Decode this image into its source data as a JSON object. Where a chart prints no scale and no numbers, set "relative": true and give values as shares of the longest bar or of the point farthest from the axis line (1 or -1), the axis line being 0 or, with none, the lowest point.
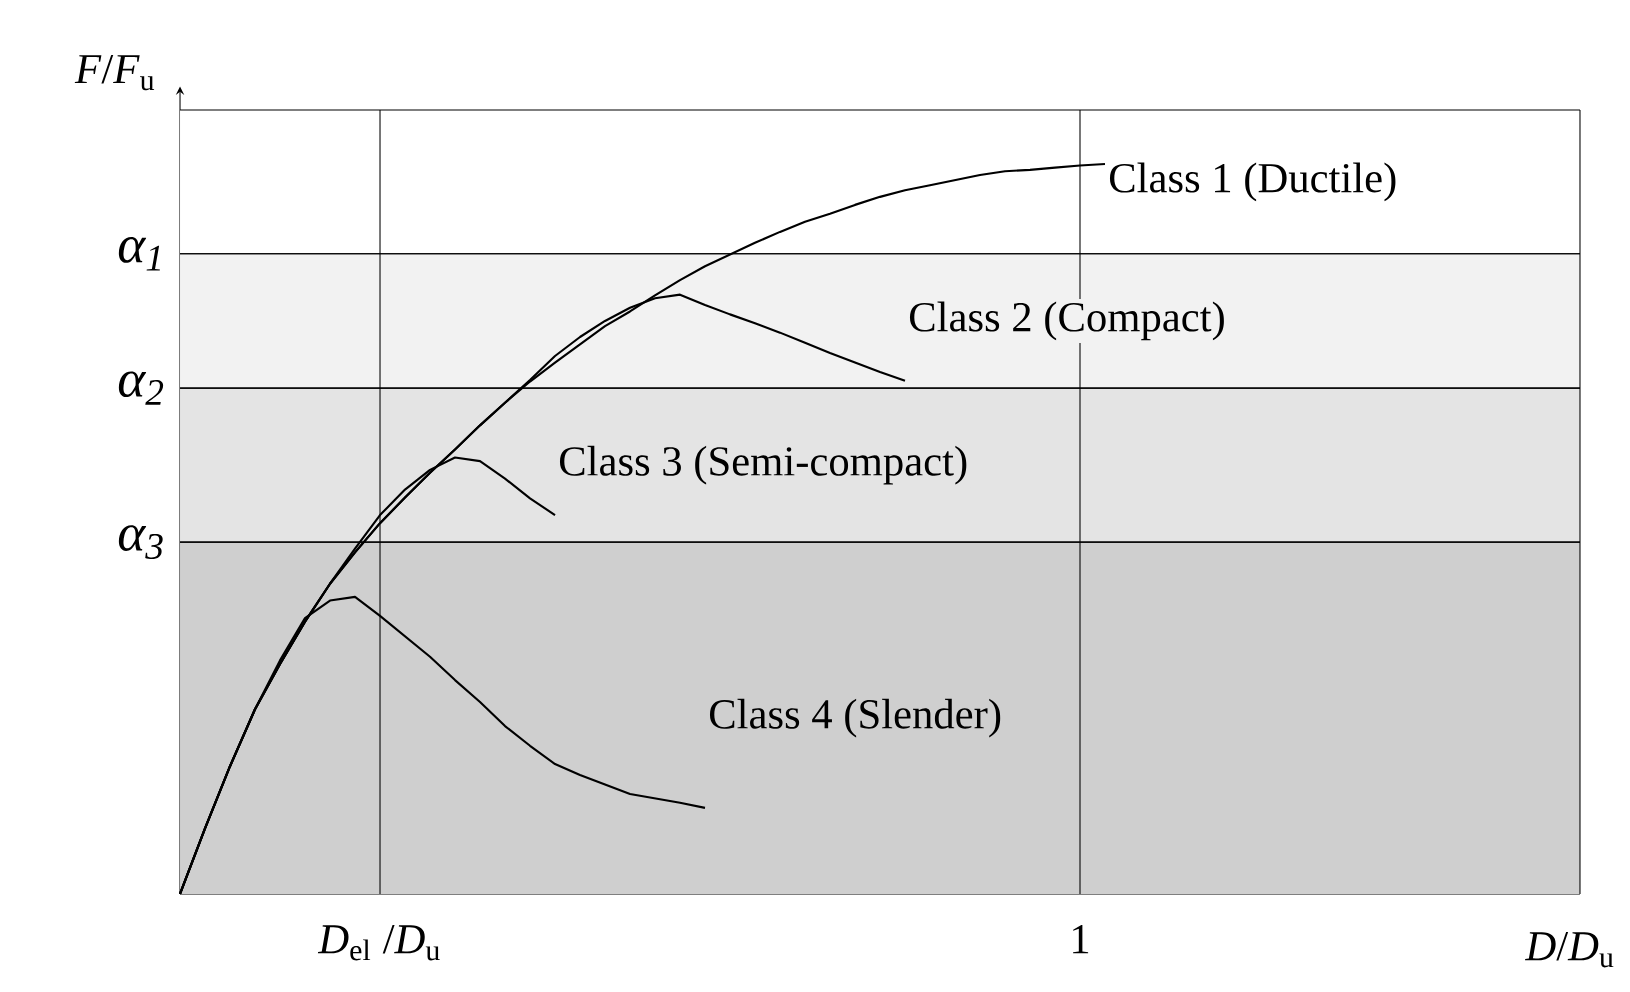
{
  "chart_data": {
    "type": "line",
    "relative": true,
    "xlabel": "*D*/*D*$_{u}$",
    "ylabel": "*F*/*F*$_{u}$",
    "categories": [
      null,
      null,
      null,
      null,
      null,
      null,
      null,
      null,
      "*D*$_{el}$ /*D*$_{u}$",
      null,
      null,
      null,
      null,
      null,
      null,
      null,
      null,
      null,
      null,
      null,
      null,
      null,
      null,
      null,
      null,
      null,
      null,
      null,
      null,
      null,
      null,
      null,
      null,
      null,
      null,
      null,
      "1",
      null,
      null,
      null,
      null,
      null,
      null,
      null,
      null,
      null,
      null,
      null,
      null,
      null,
      null,
      null,
      null,
      null,
      null,
      null,
      null
    ],
    "series": [
      {
        "color": "#000000",
        "values": [
          0,
          0.09,
          0.175,
          0.253,
          0.315,
          0.373,
          0.425,
          0.468,
          0.508,
          0.543,
          0.577,
          0.609,
          0.642,
          0.673,
          0.702,
          0.728,
          0.753,
          0.778,
          0.798,
          0.82,
          0.841,
          0.86,
          0.876,
          0.892,
          0.907,
          0.921,
          0.932,
          0.944,
          0.955,
          0.964,
          0.971,
          0.978,
          0.985,
          0.99,
          0.992,
          0.995,
          0.998,
          1.0,
          null,
          null,
          null,
          null,
          null,
          null,
          null,
          null,
          null,
          null,
          null,
          null,
          null,
          null,
          null,
          null,
          null,
          null,
          null
        ]
      },
      {
        "color": "#000000",
        "values": [
          0,
          0.09,
          0.175,
          0.253,
          0.315,
          0.373,
          0.425,
          0.468,
          0.508,
          0.543,
          0.577,
          0.609,
          0.642,
          0.673,
          0.704,
          0.737,
          0.763,
          0.785,
          0.803,
          0.816,
          0.821,
          0.807,
          0.794,
          0.782,
          0.769,
          0.755,
          0.741,
          0.728,
          0.715,
          0.703,
          null,
          null,
          null,
          null,
          null,
          null,
          null,
          null,
          null,
          null,
          null,
          null,
          null,
          null,
          null,
          null,
          null,
          null,
          null,
          null,
          null,
          null,
          null,
          null,
          null,
          null,
          null
        ]
      },
      {
        "color": "#000000",
        "values": [
          0,
          0.09,
          0.175,
          0.253,
          0.315,
          0.373,
          0.425,
          0.473,
          0.519,
          0.554,
          0.581,
          0.598,
          0.593,
          0.569,
          0.542,
          0.519,
          null,
          null,
          null,
          null,
          null,
          null,
          null,
          null,
          null,
          null,
          null,
          null,
          null,
          null,
          null,
          null,
          null,
          null,
          null,
          null,
          null,
          null,
          null,
          null,
          null,
          null,
          null,
          null,
          null,
          null,
          null,
          null,
          null,
          null,
          null,
          null,
          null,
          null,
          null,
          null,
          null
        ]
      },
      {
        "color": "#000000",
        "values": [
          0,
          0.09,
          0.175,
          0.253,
          0.32,
          0.378,
          0.402,
          0.407,
          0.381,
          0.353,
          0.325,
          0.293,
          0.263,
          0.23,
          0.203,
          0.178,
          0.163,
          0.15,
          0.137,
          0.131,
          0.125,
          0.118,
          null,
          null,
          null,
          null,
          null,
          null,
          null,
          null,
          null,
          null,
          null,
          null,
          null,
          null,
          null,
          null,
          null,
          null,
          null,
          null,
          null,
          null,
          null,
          null,
          null,
          null,
          null,
          null,
          null,
          null,
          null,
          null,
          null,
          null,
          null
        ]
      }
    ],
    "bands": [
      {
        "axis": "y",
        "from": 0.877,
        "to": 1.074,
        "label": "Class 1 (Ductile)",
        "color": "#ffffff"
      },
      {
        "axis": "y",
        "from": 0.693,
        "to": 0.877,
        "label": "Class 2 (Compact)",
        "color": "#f2f2f2"
      },
      {
        "axis": "y",
        "from": 0.482,
        "to": 0.693,
        "label": "Class 3 (Semi-compact)",
        "color": "#e4e4e4"
      },
      {
        "axis": "y",
        "from": 0,
        "to": 0.482,
        "label": "Class 4 (Slender)",
        "color": "#cfcfcf"
      }
    ],
    "ref_lines": [
      {
        "axis": "y",
        "value": 0.877,
        "label": "α$_{1}$"
      },
      {
        "axis": "y",
        "value": 0.693,
        "label": "α$_{2}$"
      },
      {
        "axis": "y",
        "value": 0.482,
        "label": "α$_{3}$"
      },
      {
        "axis": "x",
        "value": "*D*$_{el}$ /*D*$_{u}$"
      },
      {
        "axis": "x",
        "value": "1"
      }
    ],
    "grid": false
  }
}
